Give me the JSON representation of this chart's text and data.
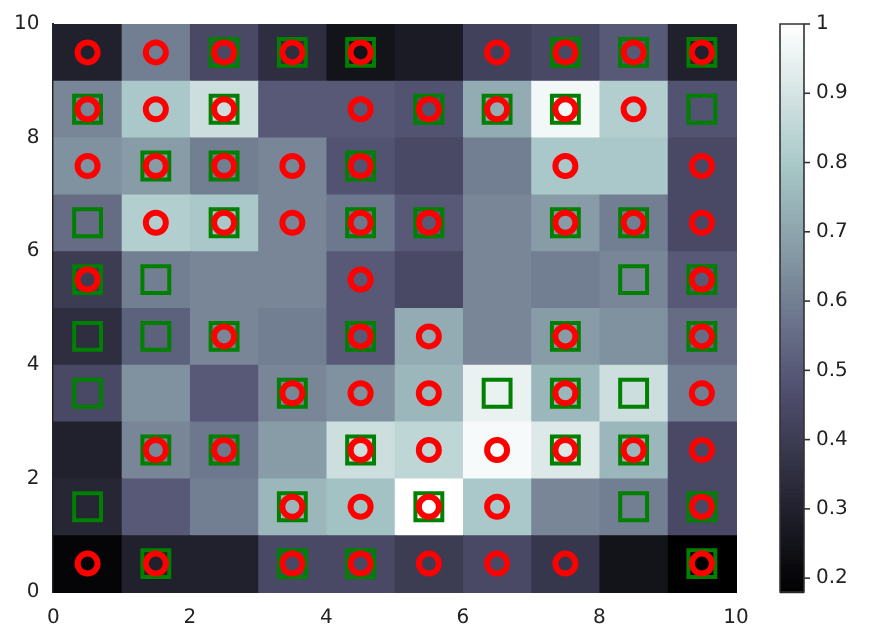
{
  "chart_data": {
    "type": "heatmap",
    "cells": [
      [
        0.3,
        0.6,
        0.45,
        0.35,
        0.25,
        0.28,
        0.42,
        0.45,
        0.5,
        0.3
      ],
      [
        0.62,
        0.8,
        0.88,
        0.5,
        0.5,
        0.48,
        0.72,
        0.97,
        0.82,
        0.48
      ],
      [
        0.65,
        0.68,
        0.6,
        0.62,
        0.48,
        0.45,
        0.6,
        0.8,
        0.8,
        0.45
      ],
      [
        0.55,
        0.82,
        0.8,
        0.62,
        0.58,
        0.5,
        0.62,
        0.68,
        0.6,
        0.45
      ],
      [
        0.4,
        0.6,
        0.62,
        0.62,
        0.5,
        0.45,
        0.62,
        0.6,
        0.62,
        0.5
      ],
      [
        0.35,
        0.52,
        0.62,
        0.6,
        0.5,
        0.72,
        0.62,
        0.68,
        0.65,
        0.55
      ],
      [
        0.45,
        0.65,
        0.5,
        0.62,
        0.65,
        0.75,
        0.95,
        0.75,
        0.88,
        0.6
      ],
      [
        0.3,
        0.62,
        0.58,
        0.68,
        0.88,
        0.85,
        0.98,
        0.92,
        0.75,
        0.45
      ],
      [
        0.32,
        0.5,
        0.6,
        0.75,
        0.78,
        1.0,
        0.8,
        0.62,
        0.6,
        0.45
      ],
      [
        0.2,
        0.3,
        0.3,
        0.45,
        0.45,
        0.4,
        0.45,
        0.38,
        0.25,
        0.18
      ]
    ],
    "clim": [
      0.18,
      1.0
    ],
    "cticks": [
      0.2,
      0.3,
      0.4,
      0.5,
      0.6,
      0.7,
      0.8,
      0.9,
      1.0
    ],
    "xlim": [
      0,
      10
    ],
    "ylim": [
      0,
      10
    ],
    "xticks": [
      0,
      2,
      4,
      6,
      8,
      10
    ],
    "yticks": [
      0,
      2,
      4,
      6,
      8,
      10
    ],
    "series": [
      {
        "type": "scatter",
        "marker": "square",
        "color": "#008000",
        "x": [
          2.5,
          3.5,
          4.5,
          7.5,
          8.5,
          9.5,
          0.5,
          2.5,
          5.5,
          6.5,
          7.5,
          9.5,
          1.5,
          2.5,
          4.5,
          0.5,
          2.5,
          4.5,
          5.5,
          7.5,
          8.5,
          0.5,
          1.5,
          8.5,
          9.5,
          0.5,
          1.5,
          2.5,
          4.5,
          7.5,
          9.5,
          0.5,
          3.5,
          6.5,
          7.5,
          8.5,
          1.5,
          2.5,
          4.5,
          7.5,
          8.5,
          0.5,
          3.5,
          5.5,
          8.5,
          9.5,
          1.5,
          3.5,
          4.5,
          9.5
        ],
        "values": [
          9.5,
          9.5,
          9.5,
          9.5,
          9.5,
          9.5,
          8.5,
          8.5,
          8.5,
          8.5,
          8.5,
          8.5,
          7.5,
          7.5,
          7.5,
          6.5,
          6.5,
          6.5,
          6.5,
          6.5,
          6.5,
          5.5,
          5.5,
          5.5,
          5.5,
          4.5,
          4.5,
          4.5,
          4.5,
          4.5,
          4.5,
          3.5,
          3.5,
          3.5,
          3.5,
          3.5,
          2.5,
          2.5,
          2.5,
          2.5,
          2.5,
          1.5,
          1.5,
          1.5,
          1.5,
          1.5,
          0.5,
          0.5,
          0.5,
          0.5
        ]
      },
      {
        "type": "scatter",
        "marker": "circle",
        "color": "#ff0000",
        "x": [
          0.5,
          1.5,
          2.5,
          3.5,
          4.5,
          6.5,
          7.5,
          8.5,
          9.5,
          0.5,
          1.5,
          2.5,
          4.5,
          5.5,
          6.5,
          7.5,
          8.5,
          0.5,
          1.5,
          2.5,
          3.5,
          4.5,
          7.5,
          9.5,
          1.5,
          2.5,
          3.5,
          4.5,
          5.5,
          7.5,
          8.5,
          9.5,
          0.5,
          4.5,
          9.5,
          2.5,
          4.5,
          5.5,
          7.5,
          9.5,
          3.5,
          4.5,
          5.5,
          7.5,
          9.5,
          1.5,
          2.5,
          4.5,
          5.5,
          6.5,
          7.5,
          8.5,
          9.5,
          3.5,
          4.5,
          5.5,
          6.5,
          9.5,
          0.5,
          1.5,
          3.5,
          4.5,
          5.5,
          6.5,
          7.5,
          9.5
        ],
        "values": [
          9.5,
          9.5,
          9.5,
          9.5,
          9.5,
          9.5,
          9.5,
          9.5,
          9.5,
          8.5,
          8.5,
          8.5,
          8.5,
          8.5,
          8.5,
          8.5,
          8.5,
          7.5,
          7.5,
          7.5,
          7.5,
          7.5,
          7.5,
          7.5,
          6.5,
          6.5,
          6.5,
          6.5,
          6.5,
          6.5,
          6.5,
          6.5,
          5.5,
          5.5,
          5.5,
          4.5,
          4.5,
          4.5,
          4.5,
          4.5,
          3.5,
          3.5,
          3.5,
          3.5,
          3.5,
          2.5,
          2.5,
          2.5,
          2.5,
          2.5,
          2.5,
          2.5,
          2.5,
          1.5,
          1.5,
          1.5,
          1.5,
          1.5,
          0.5,
          0.5,
          0.5,
          0.5,
          0.5,
          0.5,
          0.5,
          0.5
        ]
      }
    ]
  }
}
